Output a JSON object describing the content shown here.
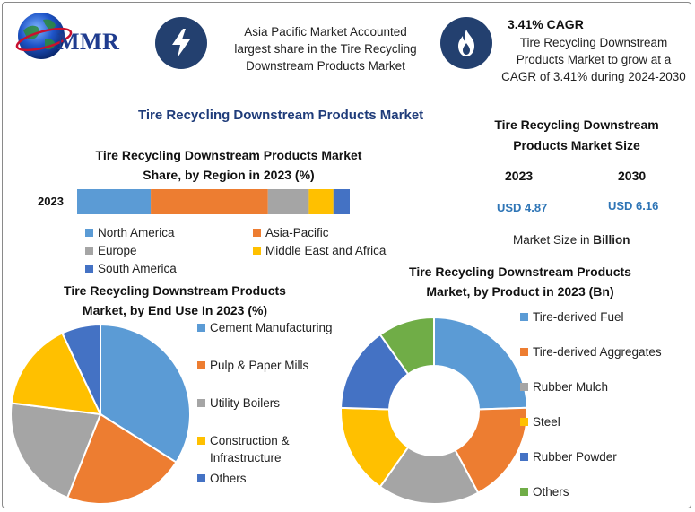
{
  "header": {
    "logo_text": "MMR",
    "banner_1": [
      "Asia Pacific Market Accounted",
      "largest share in the Tire Recycling",
      "Downstream Products Market"
    ],
    "cagr_title": "3.41% CAGR",
    "banner_2": [
      "Tire Recycling Downstream",
      "Products Market to grow at a",
      "CAGR of 3.41% during 2024-2030"
    ],
    "icon_1": "lightning-icon",
    "icon_2": "flame-icon"
  },
  "main_title": "Tire Recycling Downstream Products Market",
  "market_size": {
    "title_lines": [
      "Tire Recycling Downstream",
      "Products Market Size"
    ],
    "year_a": "2023",
    "year_b": "2030",
    "value_a": "USD 4.87",
    "value_b": "USD 6.16",
    "unit_prefix": "Market Size in ",
    "unit_bold": "Billion"
  },
  "chart_data": [
    {
      "type": "bar",
      "orientation": "horizontal-stacked",
      "title_lines": [
        "Tire Recycling Downstream Products Market",
        "Share, by Region in 2023 (%)"
      ],
      "categories": [
        "2023"
      ],
      "series": [
        {
          "name": "North America",
          "values": [
            27
          ],
          "color": "#5b9bd5"
        },
        {
          "name": "Asia-Pacific",
          "values": [
            43
          ],
          "color": "#ed7d31"
        },
        {
          "name": "Europe",
          "values": [
            15
          ],
          "color": "#a5a5a5"
        },
        {
          "name": "Middle East and Africa",
          "values": [
            9
          ],
          "color": "#ffc000"
        },
        {
          "name": "South America",
          "values": [
            6
          ],
          "color": "#4472c4"
        }
      ],
      "legend_position": "bottom"
    },
    {
      "type": "pie",
      "title_lines": [
        "Tire Recycling Downstream Products",
        "Market, by End Use In 2023 (%)"
      ],
      "labels": [
        "Cement Manufacturing",
        "Pulp & Paper Mills",
        "Utility Boilers",
        "Construction & Infrastructure",
        "Others"
      ],
      "legend_lines": [
        [
          "Cement Manufacturing"
        ],
        [
          "Pulp & Paper Mills"
        ],
        [
          "Utility Boilers"
        ],
        [
          "Construction &",
          "Infrastructure"
        ],
        [
          "Others"
        ]
      ],
      "values": [
        34,
        22,
        21,
        16,
        7
      ],
      "colors": [
        "#5b9bd5",
        "#ed7d31",
        "#a5a5a5",
        "#ffc000",
        "#4472c4"
      ],
      "legend_position": "right"
    },
    {
      "type": "pie",
      "subtype": "donut",
      "title_lines": [
        "Tire Recycling Downstream Products",
        "Market, by Product in 2023 (Bn)"
      ],
      "labels": [
        "Tire-derived Fuel",
        "Tire-derived Aggregates",
        "Rubber Mulch",
        "Steel",
        "Rubber Powder",
        "Others"
      ],
      "values": [
        25,
        18,
        18,
        16,
        15,
        10
      ],
      "colors": [
        "#5b9bd5",
        "#ed7d31",
        "#a5a5a5",
        "#ffc000",
        "#4472c4",
        "#70ad47"
      ],
      "legend_position": "right"
    }
  ]
}
